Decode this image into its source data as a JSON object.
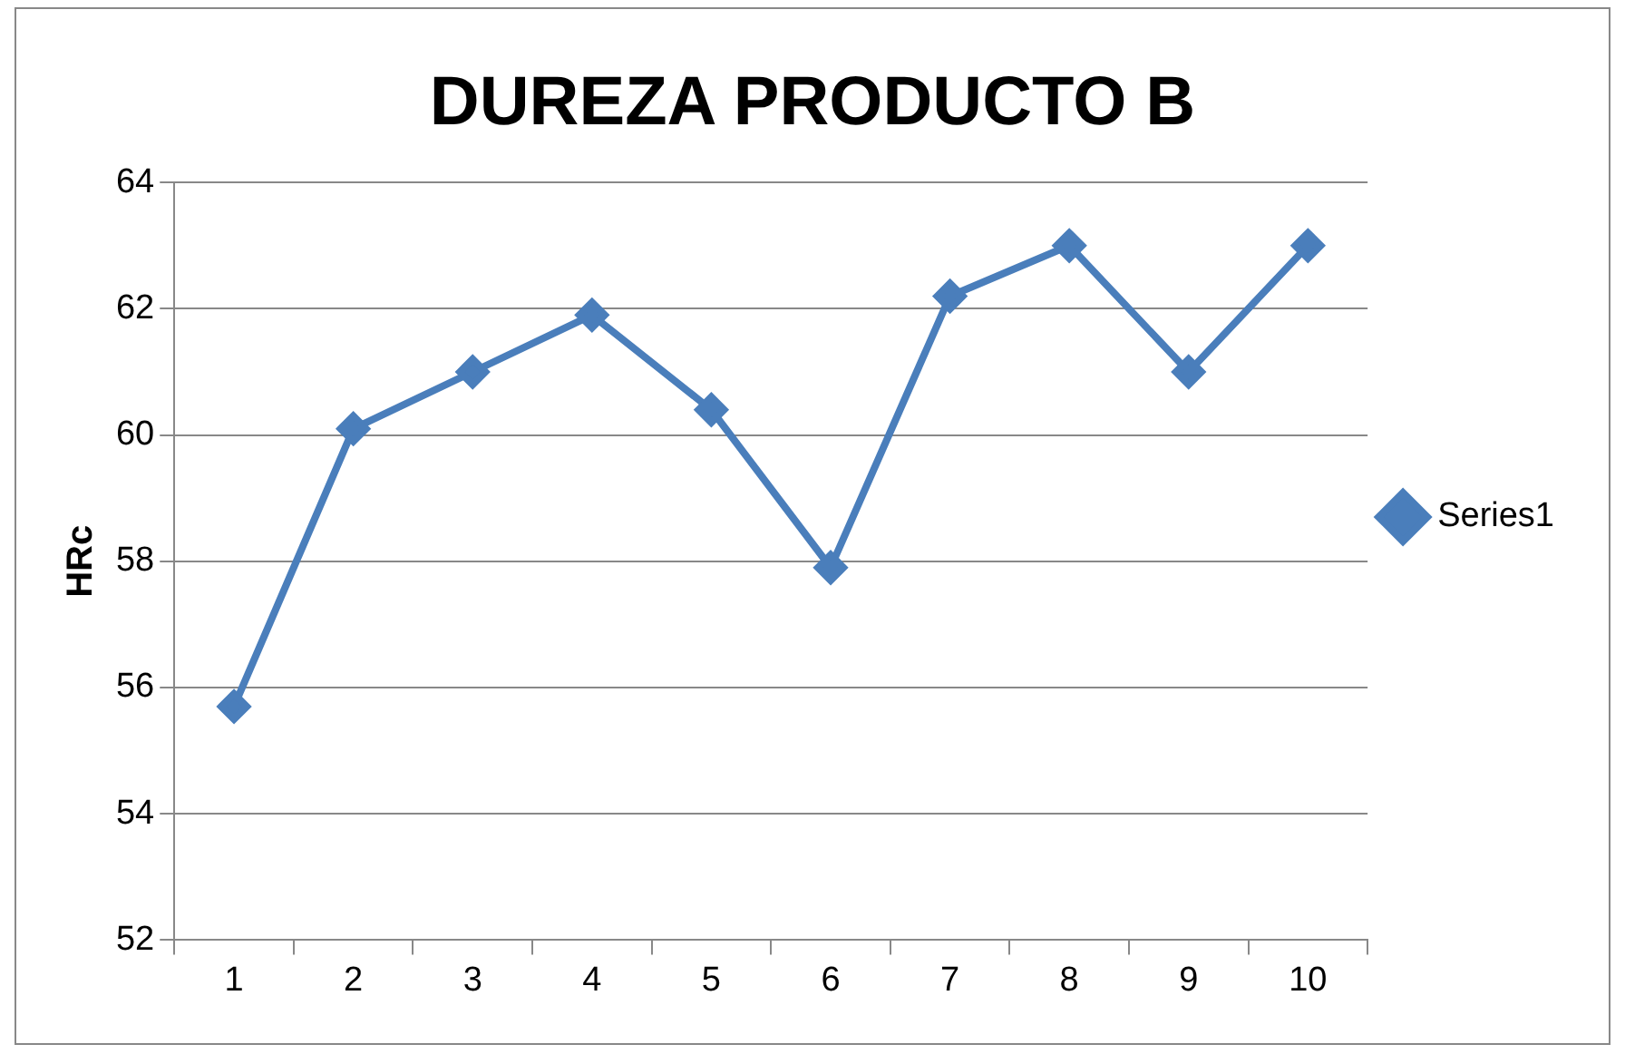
{
  "chart_data": {
    "type": "line",
    "title": "DUREZA PRODUCTO B",
    "ylabel": "HRc",
    "categories": [
      "1",
      "2",
      "3",
      "4",
      "5",
      "6",
      "7",
      "8",
      "9",
      "10"
    ],
    "series": [
      {
        "name": "Series1",
        "color": "#4a7ebb",
        "values": [
          55.7,
          60.1,
          61.0,
          61.9,
          60.4,
          57.9,
          62.2,
          63.0,
          61.0,
          63.0
        ]
      }
    ],
    "ylim": [
      52,
      64
    ],
    "yticks": [
      52,
      54,
      56,
      58,
      60,
      62,
      64
    ],
    "grid": "y",
    "legend": "right",
    "marker": "diamond",
    "line_style": "solid"
  }
}
